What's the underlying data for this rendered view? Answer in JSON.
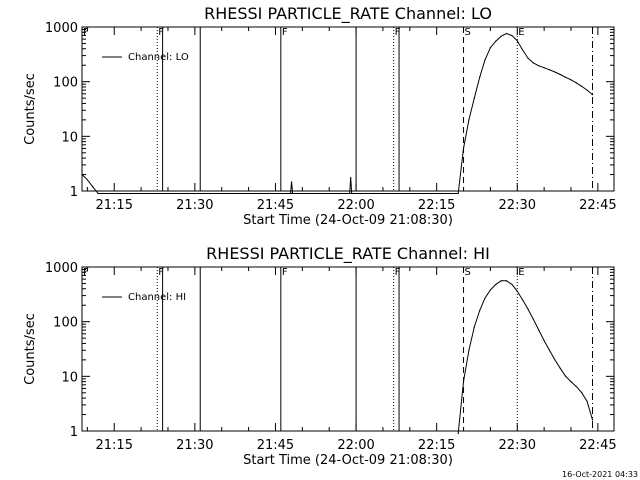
{
  "footer": {
    "timestamp": "16-Oct-2021 04:33"
  },
  "chart_data": [
    {
      "type": "line",
      "title": "RHESSI PARTICLE_RATE Channel: LO",
      "xlabel": "Start Time (24-Oct-09 21:08:30)",
      "ylabel": "Counts/sec",
      "y_scale": "log",
      "ylim": [
        1,
        1000
      ],
      "xlim": [
        "21:09",
        "22:48"
      ],
      "x_ticks": [
        "21:15",
        "21:30",
        "21:45",
        "22:00",
        "22:15",
        "22:30",
        "22:45"
      ],
      "y_ticks": [
        "1",
        "10",
        "100",
        "1000"
      ],
      "legend": {
        "position": "top-left",
        "entries": [
          "Channel: LO"
        ]
      },
      "series": [
        {
          "name": "Channel: LO",
          "x": [
            "21:09",
            "21:10",
            "21:11",
            "21:12",
            "22:19",
            "22:20",
            "22:21",
            "22:22",
            "22:23",
            "22:24",
            "22:25",
            "22:26",
            "22:27",
            "22:28",
            "22:29",
            "22:30",
            "22:31",
            "22:32",
            "22:33",
            "22:34",
            "22:35",
            "22:36",
            "22:37",
            "22:38",
            "22:39",
            "22:40",
            "22:41",
            "22:42",
            "22:43",
            "22:44"
          ],
          "y": [
            2,
            1.6,
            1.2,
            0.9,
            0.9,
            6,
            20,
            50,
            120,
            250,
            420,
            550,
            680,
            760,
            700,
            560,
            380,
            270,
            220,
            195,
            180,
            165,
            150,
            135,
            120,
            108,
            95,
            82,
            70,
            58
          ]
        }
      ],
      "markers": [
        {
          "label": "F",
          "x": "21:09",
          "style": "dotted"
        },
        {
          "label": "F",
          "x": "21:23",
          "style": "dotted"
        },
        {
          "label": "",
          "x": "21:24",
          "style": "solid"
        },
        {
          "label": "",
          "x": "21:31",
          "style": "solid"
        },
        {
          "label": "F",
          "x": "21:46",
          "style": "solid"
        },
        {
          "label": "",
          "x": "22:00",
          "style": "solid"
        },
        {
          "label": "F",
          "x": "22:07",
          "style": "dotted"
        },
        {
          "label": "",
          "x": "22:08",
          "style": "solid"
        },
        {
          "label": "S",
          "x": "22:20",
          "style": "dashed"
        },
        {
          "label": "E",
          "x": "22:30",
          "style": "dotted"
        },
        {
          "label": "",
          "x": "22:44",
          "style": "dashdot"
        }
      ],
      "spikes": [
        {
          "x": "21:48",
          "y": 1.5
        },
        {
          "x": "21:59",
          "y": 1.8
        }
      ]
    },
    {
      "type": "line",
      "title": "RHESSI PARTICLE_RATE Channel: HI",
      "xlabel": "Start Time (24-Oct-09 21:08:30)",
      "ylabel": "Counts/sec",
      "y_scale": "log",
      "ylim": [
        1,
        1000
      ],
      "xlim": [
        "21:09",
        "22:48"
      ],
      "x_ticks": [
        "21:15",
        "21:30",
        "21:45",
        "22:00",
        "22:15",
        "22:30",
        "22:45"
      ],
      "y_ticks": [
        "1",
        "10",
        "100",
        "1000"
      ],
      "legend": {
        "position": "top-left",
        "entries": [
          "Channel: HI"
        ]
      },
      "series": [
        {
          "name": "Channel: HI",
          "x": [
            "22:19",
            "22:20",
            "22:21",
            "22:22",
            "22:23",
            "22:24",
            "22:25",
            "22:26",
            "22:27",
            "22:28",
            "22:29",
            "22:30",
            "22:31",
            "22:32",
            "22:33",
            "22:34",
            "22:35",
            "22:36",
            "22:37",
            "22:38",
            "22:39",
            "22:40",
            "22:41",
            "22:42",
            "22:43",
            "22:44"
          ],
          "y": [
            0.9,
            8,
            30,
            80,
            160,
            270,
            380,
            480,
            560,
            560,
            480,
            360,
            250,
            170,
            110,
            70,
            45,
            30,
            20,
            14,
            10,
            8,
            6.5,
            5,
            3.5,
            1.6
          ]
        }
      ],
      "markers": [
        {
          "label": "F",
          "x": "21:09",
          "style": "dotted"
        },
        {
          "label": "F",
          "x": "21:23",
          "style": "dotted"
        },
        {
          "label": "",
          "x": "21:24",
          "style": "solid"
        },
        {
          "label": "",
          "x": "21:31",
          "style": "solid"
        },
        {
          "label": "F",
          "x": "21:46",
          "style": "solid"
        },
        {
          "label": "",
          "x": "22:00",
          "style": "solid"
        },
        {
          "label": "F",
          "x": "22:07",
          "style": "dotted"
        },
        {
          "label": "",
          "x": "22:08",
          "style": "solid"
        },
        {
          "label": "S",
          "x": "22:20",
          "style": "dashed"
        },
        {
          "label": "E",
          "x": "22:30",
          "style": "dotted"
        },
        {
          "label": "",
          "x": "22:44",
          "style": "dashdot"
        }
      ],
      "spikes": []
    }
  ]
}
